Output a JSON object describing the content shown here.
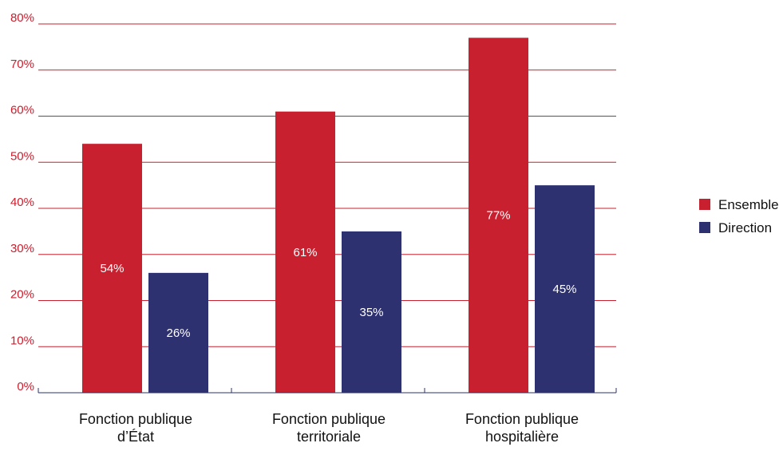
{
  "chart_data": {
    "type": "bar",
    "categories": [
      [
        "Fonction publique",
        "d’État"
      ],
      [
        "Fonction publique",
        "territoriale"
      ],
      [
        "Fonction publique",
        "hospitalière"
      ]
    ],
    "series": [
      {
        "name": "Ensemble",
        "values": [
          54,
          61,
          77
        ],
        "labels": [
          "54%",
          "61%",
          "77%"
        ],
        "color": "#c8202f"
      },
      {
        "name": "Direction",
        "values": [
          26,
          35,
          45
        ],
        "labels": [
          "26%",
          "35%",
          "45%"
        ],
        "color": "#2e3170"
      }
    ],
    "ylim": [
      0,
      80
    ],
    "yticks": [
      0,
      10,
      20,
      30,
      40,
      50,
      60,
      70,
      80
    ],
    "ytick_labels": [
      "0%",
      "10%",
      "20%",
      "30%",
      "40%",
      "50%",
      "60%",
      "70%",
      "80%"
    ],
    "grid": true,
    "grid_color": "#c8202f",
    "axis_color": "#2e3170",
    "legend_position": "right"
  }
}
